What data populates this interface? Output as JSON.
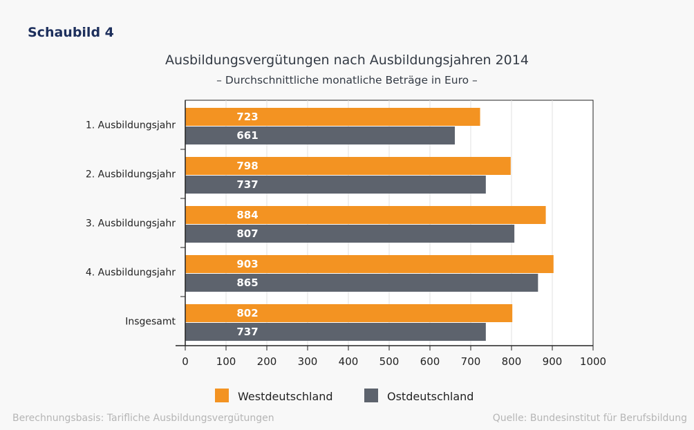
{
  "label": "Schaubild 4",
  "footer_left": "Berechnungsbasis: Tarifliche Ausbildungsvergütungen",
  "footer_right": "Quelle: Bundesinstitut für Berufsbildung",
  "chart_data": {
    "type": "bar",
    "orientation": "horizontal",
    "title": "Ausbildungsvergütungen nach Ausbildungsjahren 2014",
    "subtitle": "– Durchschnittliche monatliche Beträge in Euro –",
    "categories": [
      "1. Ausbildungsjahr",
      "2. Ausbildungsjahr",
      "3. Ausbildungsjahr",
      "4. Ausbildungsjahr",
      "Insgesamt"
    ],
    "series": [
      {
        "name": "Westdeutschland",
        "color": "#f39322",
        "values": [
          723,
          798,
          884,
          903,
          802
        ]
      },
      {
        "name": "Ostdeutschland",
        "color": "#5d636d",
        "values": [
          661,
          737,
          807,
          865,
          737
        ]
      }
    ],
    "xlim": [
      0,
      1000
    ],
    "xticks": [
      0,
      100,
      200,
      300,
      400,
      500,
      600,
      700,
      800,
      900,
      1000
    ],
    "grid": true,
    "legend": "bottom-center"
  }
}
